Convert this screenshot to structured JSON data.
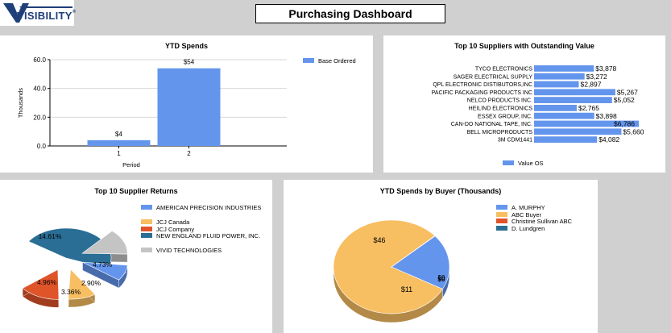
{
  "header": {
    "logo_text": "VISIBILITY",
    "logo_reg": "®",
    "title": "Purchasing Dashboard"
  },
  "ytd_spends": {
    "title": "YTD Spends",
    "legend": "Base Ordered",
    "color": "#6495ed"
  },
  "top_suppliers": {
    "title": "Top 10 Suppliers with Outstanding Value",
    "legend": "Value OS",
    "color": "#6495ed"
  },
  "supplier_returns": {
    "title": "Top 10 Supplier Returns",
    "legend": [
      {
        "label": "AMERICAN PRECISION INDUSTRIES",
        "color": "#6495ed"
      },
      {
        "label": "JCJ Canada",
        "color": "#f8be62"
      },
      {
        "label": "JCJ Company",
        "color": "#e0542a"
      },
      {
        "label": "NEW ENGLAND FLUID POWER, INC.",
        "color": "#2a6e95"
      },
      {
        "label": "VIVID TECHNOLOGIES",
        "color": "#c4c4c4"
      }
    ]
  },
  "spends_by_buyer": {
    "title": "YTD Spends by Buyer (Thousands)",
    "legend": [
      {
        "label": "A. MURPHY",
        "color": "#6495ed"
      },
      {
        "label": "ABC Buyer",
        "color": "#f8be62"
      },
      {
        "label": "Christine Sullivan ABC",
        "color": "#e0542a"
      },
      {
        "label": "D. Lundgren",
        "color": "#2a6e95"
      }
    ]
  },
  "chart_data": [
    {
      "type": "bar",
      "title": "YTD Spends",
      "xlabel": "Period",
      "ylabel": "Thousands",
      "categories": [
        "1",
        "2"
      ],
      "series": [
        {
          "name": "Base Ordered",
          "values": [
            4,
            54
          ]
        }
      ],
      "data_labels": [
        "$4",
        "$54"
      ],
      "ylim": [
        0,
        60
      ],
      "yticks": [
        "0.0",
        "20.0",
        "40.0",
        "60.0"
      ],
      "grid": true,
      "legend_position": "right"
    },
    {
      "type": "bar",
      "orientation": "horizontal",
      "title": "Top 10 Suppliers with Outstanding Value",
      "categories": [
        "TYCO ELECTRONICS",
        "SAGER ELECTRICAL SUPPLY",
        "QPL ELECTRONIC DISTIBUTORS,INC",
        "PACIFIC PACKAGING PRODUCTS INC",
        "NELCO PRODUCTS INC.",
        "HEILIND ELECTRONICS",
        "ESSEX GROUP, INC.",
        "CAN-DO NATIONAL TAPE, INC.",
        "BELL MICROPRODUCTS",
        "3M   CDM1441"
      ],
      "series": [
        {
          "name": "Value OS",
          "values": [
            3878,
            3272,
            2897,
            5267,
            5052,
            2765,
            3898,
            6786,
            5660,
            4082
          ]
        }
      ],
      "data_labels": [
        "$3,878",
        "$3,272",
        "$2,897",
        "$5,267",
        "$5,052",
        "$2,765",
        "$3,898",
        "$6,786",
        "$5,660",
        "$4,082"
      ],
      "legend_position": "bottom"
    },
    {
      "type": "pie",
      "title": "Top 10 Supplier Returns",
      "labels": [
        "AMERICAN PRECISION INDUSTRIES",
        "JCJ Canada",
        "JCJ Company",
        "NEW ENGLAND FLUID POWER, INC.",
        "VIVID TECHNOLOGIES"
      ],
      "values": [
        2.9,
        3.36,
        4.96,
        14.61,
        4.73
      ],
      "data_labels": [
        "2.90%",
        "3.36%",
        "4.96%",
        "14.61%",
        "4.73%"
      ],
      "legend_position": "right"
    },
    {
      "type": "pie",
      "title": "YTD Spends by Buyer (Thousands)",
      "labels": [
        "A. MURPHY",
        "ABC Buyer",
        "Christine Sullivan ABC",
        "D. Lundgren"
      ],
      "values": [
        11,
        46,
        0,
        0
      ],
      "data_labels": [
        "$11",
        "$46",
        "$0",
        "$0"
      ],
      "legend_position": "right"
    }
  ]
}
